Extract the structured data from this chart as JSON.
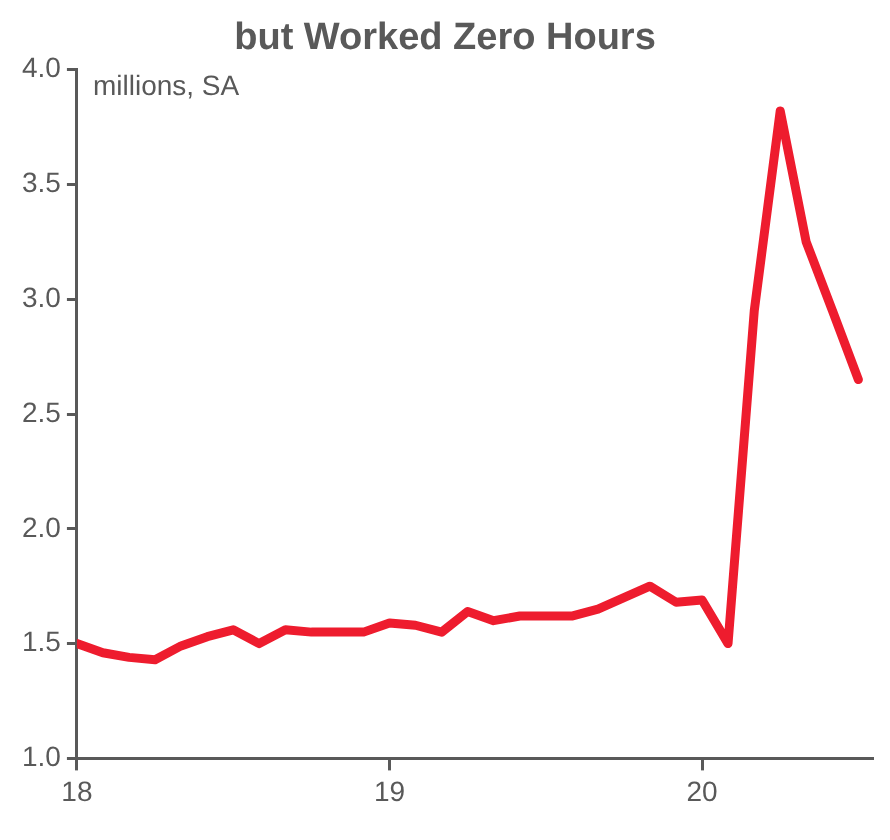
{
  "chart_data": {
    "type": "line",
    "title": "but Worked Zero Hours",
    "annotations": [
      "millions, SA"
    ],
    "x": [
      18,
      18.083,
      18.167,
      18.25,
      18.333,
      18.417,
      18.5,
      18.583,
      18.667,
      18.75,
      18.833,
      18.917,
      19,
      19.083,
      19.167,
      19.25,
      19.333,
      19.417,
      19.5,
      19.583,
      19.667,
      19.75,
      19.833,
      19.917,
      20,
      20.083,
      20.167,
      20.25,
      20.333,
      20.417,
      20.5
    ],
    "series": [
      {
        "color": "#ee1c2e",
        "values": [
          1.5,
          1.46,
          1.44,
          1.43,
          1.49,
          1.53,
          1.56,
          1.5,
          1.56,
          1.55,
          1.55,
          1.55,
          1.59,
          1.58,
          1.55,
          1.64,
          1.6,
          1.62,
          1.62,
          1.62,
          1.65,
          1.7,
          1.75,
          1.68,
          1.69,
          1.5,
          2.95,
          3.82,
          3.25,
          2.95,
          2.65
        ]
      }
    ],
    "xlim": [
      18,
      20.55
    ],
    "xticks": [
      18,
      19,
      20
    ],
    "ylim": [
      1,
      4
    ],
    "yticks": [
      {
        "value": 1,
        "label": "1.0"
      },
      1.5,
      {
        "value": 2,
        "label": "2.0"
      },
      2.5,
      {
        "value": 3,
        "label": "3.0"
      },
      3.5,
      {
        "value": 4,
        "label": "4.0"
      }
    ],
    "grid": false,
    "legend": false,
    "marker": "none",
    "line_style": "solid"
  }
}
